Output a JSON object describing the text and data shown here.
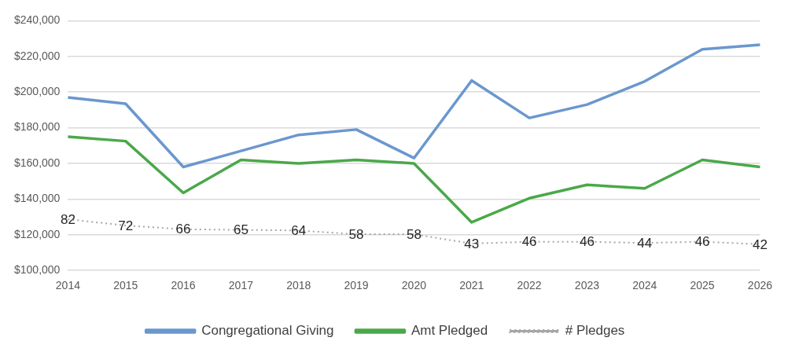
{
  "chart_data": {
    "type": "line",
    "categories": [
      "2014",
      "2015",
      "2016",
      "2017",
      "2018",
      "2019",
      "2020",
      "2021",
      "2022",
      "2023",
      "2024",
      "2025",
      "2026"
    ],
    "series": [
      {
        "name": "Congregational Giving",
        "color": "#6a97cf",
        "values": [
          197000,
          193500,
          158000,
          167000,
          176000,
          179000,
          163000,
          206500,
          185500,
          193000,
          206000,
          224000,
          226500
        ]
      },
      {
        "name": "Amt Pledged",
        "color": "#4aa84a",
        "values": [
          175000,
          172500,
          143500,
          162000,
          160000,
          162000,
          160000,
          127000,
          140500,
          148000,
          146000,
          162000,
          158000
        ]
      },
      {
        "name": "# Pledges",
        "color": "#a6a6a6",
        "axis": "y2",
        "line_style": "dotted",
        "values": [
          82,
          72,
          66,
          65,
          64,
          58,
          58,
          43,
          46,
          46,
          44,
          46,
          42
        ],
        "value_labels": [
          "82",
          "72",
          "66",
          "65",
          "64",
          "58",
          "58",
          "43",
          "46",
          "46",
          "44",
          "46",
          "42"
        ]
      }
    ],
    "ylim": [
      100000,
      240000
    ],
    "yticks": [
      {
        "value": 100000,
        "label": "$100,000"
      },
      {
        "value": 120000,
        "label": "$120,000"
      },
      {
        "value": 140000,
        "label": "$140,000"
      },
      {
        "value": 160000,
        "label": "$160,000"
      },
      {
        "value": 180000,
        "label": "$180,000"
      },
      {
        "value": 200000,
        "label": "$200,000"
      },
      {
        "value": 220000,
        "label": "$220,000"
      },
      {
        "value": 240000,
        "label": "$240,000"
      }
    ],
    "y2lim": [
      0,
      400
    ],
    "tick_labels": "xy",
    "grid": "y",
    "legend": "bottom",
    "line_style": "solid"
  }
}
